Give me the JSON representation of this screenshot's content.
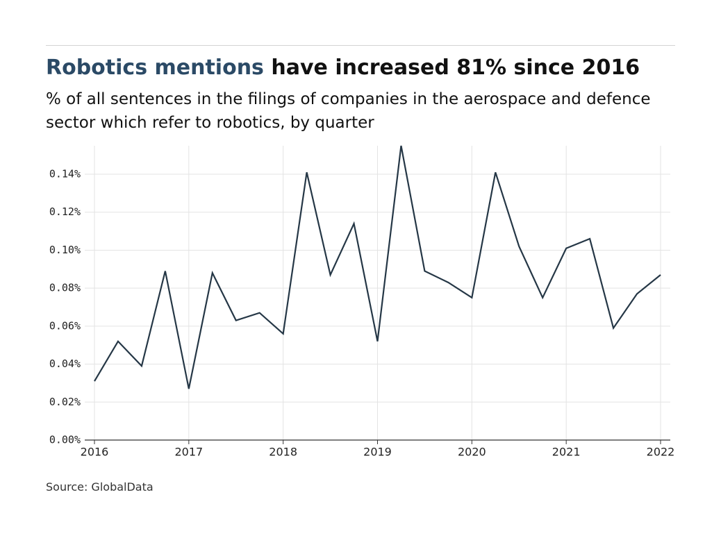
{
  "chart_data": {
    "type": "line",
    "title_highlight": "Robotics mentions",
    "title": "have increased 81% since 2016",
    "subtitle": "% of all sentences in the filings of companies in the aerospace and defence sector which refer to robotics, by quarter",
    "source": "Source: GlobalData",
    "x": [
      2016,
      2016.25,
      2016.5,
      2016.75,
      2017,
      2017.25,
      2017.5,
      2017.75,
      2018,
      2018.25,
      2018.5,
      2018.75,
      2019,
      2019.25,
      2019.5,
      2019.75,
      2020,
      2020.25,
      2020.5,
      2020.75,
      2021,
      2021.25,
      2021.5,
      2021.75,
      2022
    ],
    "series": [
      {
        "color": "#253746",
        "values": [
          0.031,
          0.052,
          0.039,
          0.089,
          0.027,
          0.088,
          0.063,
          0.067,
          0.056,
          0.141,
          0.087,
          0.114,
          0.052,
          0.155,
          0.089,
          0.083,
          0.075,
          0.141,
          0.102,
          0.075,
          0.101,
          0.106,
          0.059,
          0.077,
          0.087
        ]
      }
    ],
    "xlim": [
      2016,
      2022
    ],
    "xticks": [
      2016,
      2017,
      2018,
      2019,
      2020,
      2021,
      2022
    ],
    "ylim": [
      0,
      0.155
    ],
    "yticks": [
      {
        "value": 0,
        "label": "0.00%"
      },
      {
        "value": 0.02,
        "label": "0.02%"
      },
      {
        "value": 0.04,
        "label": "0.04%"
      },
      {
        "value": 0.06,
        "label": "0.06%"
      },
      {
        "value": 0.08,
        "label": "0.08%"
      },
      {
        "value": 0.1,
        "label": "0.10%"
      },
      {
        "value": 0.12,
        "label": "0.12%"
      },
      {
        "value": 0.14,
        "label": "0.14%"
      }
    ],
    "grid": true,
    "highlight_color": "#2b4a66"
  }
}
